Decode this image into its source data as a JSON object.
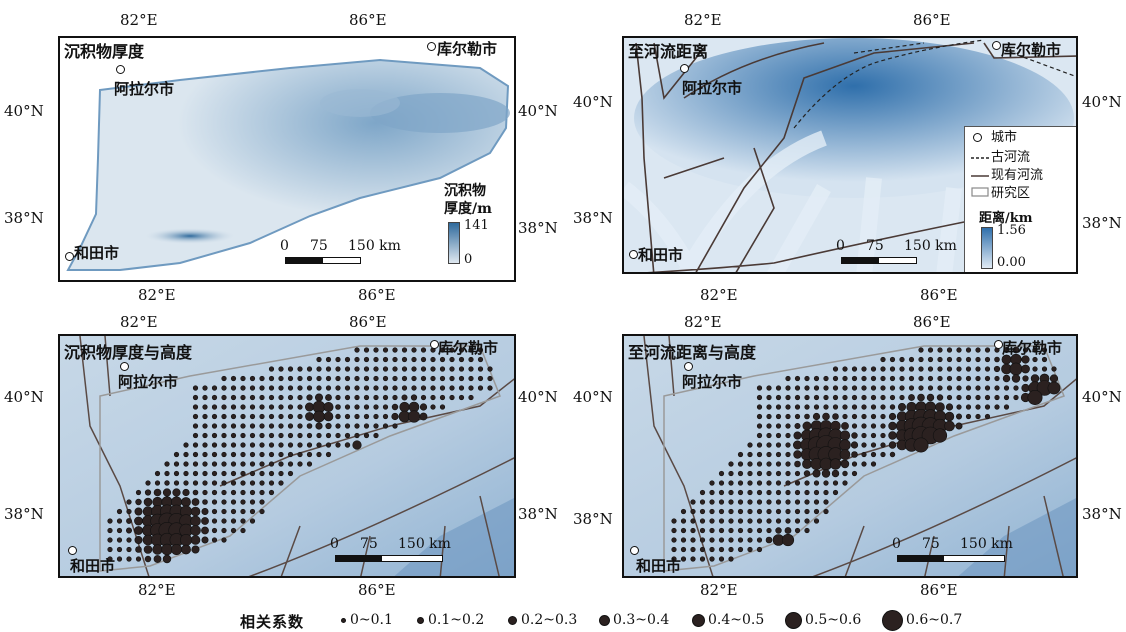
{
  "ticks": {
    "lon_82": "82°E",
    "lon_86": "86°E",
    "lat_40": "40°N",
    "lat_38": "38°N"
  },
  "cities": {
    "korla": "库尔勒市",
    "aral": "阿拉尔市",
    "hotan": "和田市"
  },
  "panels": {
    "a": {
      "title": "沉积物厚度",
      "legend_title_1": "沉积物",
      "legend_title_2": "厚度/m",
      "legend_max": "141",
      "legend_min": "0"
    },
    "b": {
      "title": "至河流距离",
      "legend_title": "距离/km",
      "legend_max": "1.56",
      "legend_min": "0.00",
      "legend_items": [
        "城市",
        "古河流",
        "现有河流",
        "研究区"
      ]
    },
    "c": {
      "title": "沉积物厚度与高度"
    },
    "d": {
      "title": "至河流距离与高度"
    }
  },
  "scalebar": {
    "n0": "0",
    "n1": "75",
    "n2": "150 km"
  },
  "bottom_legend": {
    "title": "相关系数",
    "classes": [
      "0~0.1",
      "0.1~0.2",
      "0.2~0.3",
      "0.3~0.4",
      "0.4~0.5",
      "0.5~0.6",
      "0.6~0.7"
    ]
  },
  "colors": {
    "sediment_light": "#dfe8f0",
    "sediment_dark": "#2f6a9c",
    "distance_light": "#c9daea",
    "distance_dark": "#2f6fab",
    "dot_fill": "#2b2120"
  }
}
